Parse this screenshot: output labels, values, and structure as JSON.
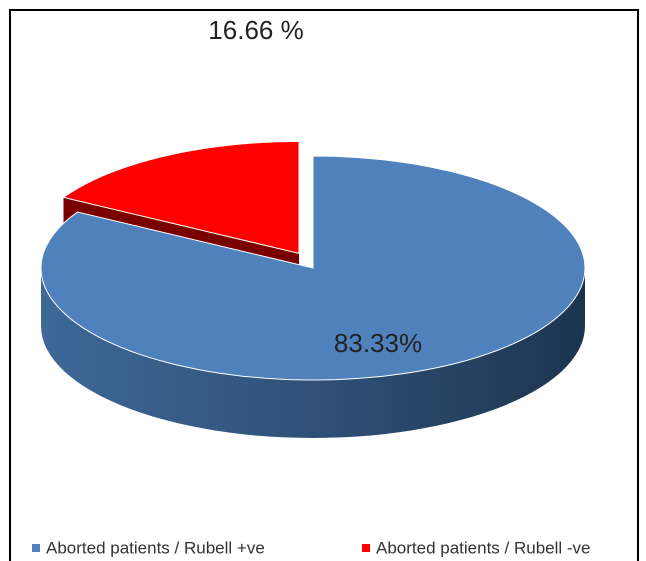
{
  "chart_data": {
    "type": "pie",
    "categories": [
      "Aborted patients / Rubell +ve",
      "Aborted patients / Rubell -ve"
    ],
    "values": [
      83.33,
      16.66
    ],
    "value_labels": [
      "83.33%",
      "16.66 %"
    ],
    "colors": [
      "#4f81bd",
      "#ff0000"
    ],
    "legend": "bottom"
  }
}
